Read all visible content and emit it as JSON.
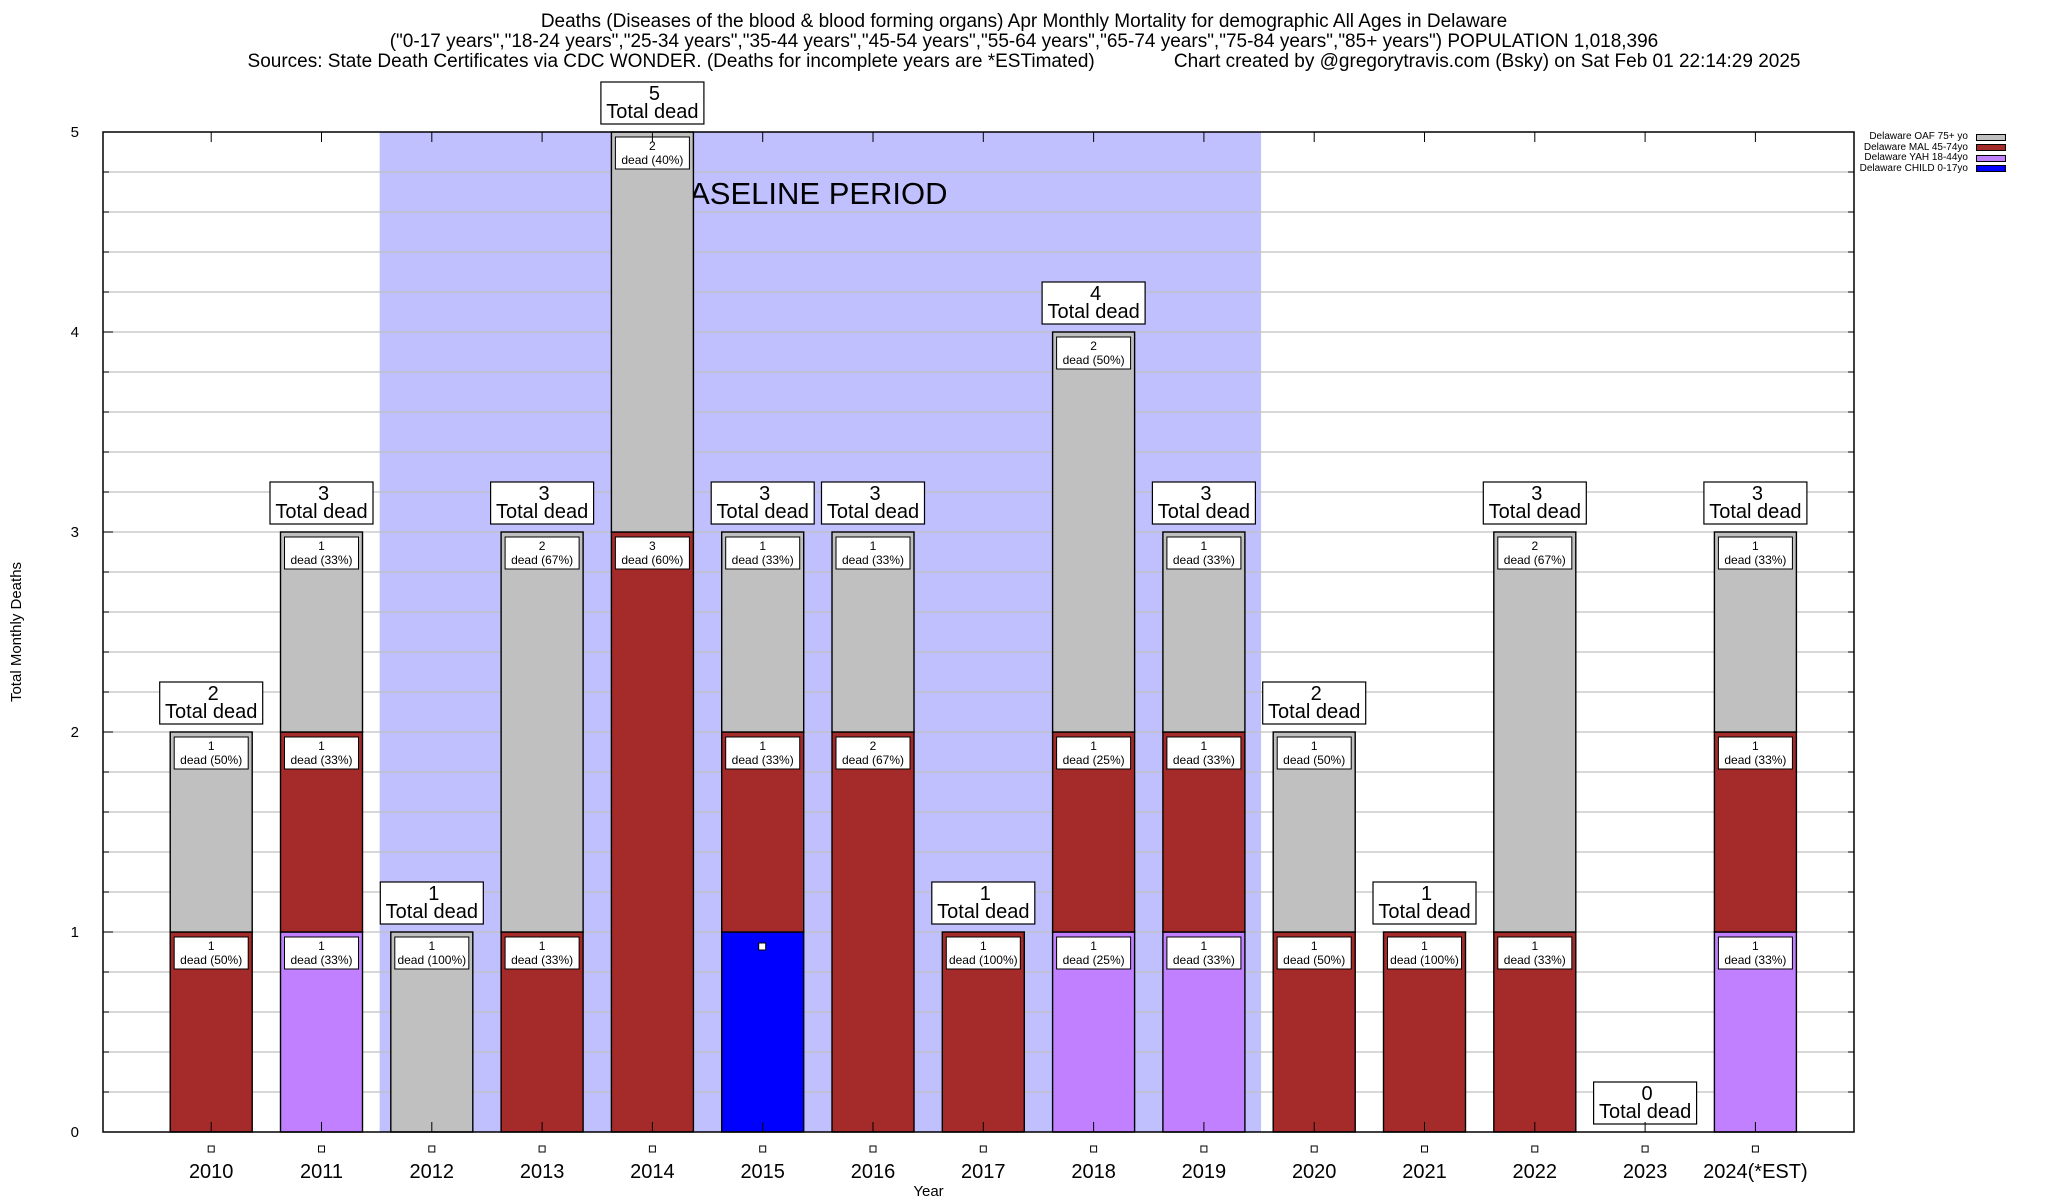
{
  "chart_data": {
    "type": "bar",
    "stacked": true,
    "title_lines": [
      "Deaths (Diseases of the blood & blood forming organs) Apr Monthly Mortality for demographic All Ages in Delaware",
      "(\"0-17 years\",\"18-24 years\",\"25-34 years\",\"35-44 years\",\"45-54 years\",\"55-64 years\",\"65-74 years\",\"75-84 years\",\"85+ years\") POPULATION 1,018,396",
      "Sources: State Death Certificates via CDC WONDER. (Deaths for incomplete years are *ESTimated)               Chart created by @gregorytravis.com (Bsky) on Sat Feb 01 22:14:29 2025"
    ],
    "xlabel": "Year",
    "ylabel": "Total Monthly Deaths",
    "ylim": [
      0,
      5
    ],
    "yticks": [
      0,
      1,
      2,
      3,
      4,
      5
    ],
    "y_minor_step": 0.2,
    "grid": true,
    "legend_position": "top-right",
    "categories": [
      "2010",
      "2011",
      "2012",
      "2013",
      "2014",
      "2015",
      "2016",
      "2017",
      "2018",
      "2019",
      "2020",
      "2021",
      "2022",
      "2023",
      "2024(*EST)"
    ],
    "series": [
      {
        "name": "Delaware CHILD 0-17yo",
        "color": "#0000ff",
        "values": [
          0,
          0,
          0,
          0,
          0,
          1,
          0,
          0,
          0,
          0,
          0,
          0,
          0,
          0,
          0
        ]
      },
      {
        "name": "Delaware YAH 18-44yo",
        "color": "#c080ff",
        "values": [
          0,
          1,
          0,
          0,
          0,
          0,
          0,
          0,
          1,
          1,
          0,
          0,
          0,
          0,
          1
        ]
      },
      {
        "name": "Delaware MAL 45-74yo",
        "color": "#a52a2a",
        "values": [
          1,
          1,
          0,
          1,
          3,
          1,
          2,
          1,
          1,
          1,
          1,
          1,
          1,
          0,
          1
        ]
      },
      {
        "name": "Delaware OAF 75+ yo",
        "color": "#c0c0c0",
        "values": [
          1,
          1,
          1,
          2,
          2,
          1,
          1,
          0,
          2,
          1,
          1,
          0,
          2,
          0,
          1
        ]
      }
    ],
    "legend_order": [
      "Delaware OAF 75+ yo",
      "Delaware MAL 45-74yo",
      "Delaware YAH 18-44yo",
      "Delaware CHILD 0-17yo"
    ],
    "totals": [
      2,
      3,
      1,
      3,
      5,
      3,
      3,
      1,
      4,
      3,
      2,
      1,
      3,
      0,
      3
    ],
    "total_label_suffix": "Total dead",
    "segment_label_word": "dead",
    "segment_labels": [
      [
        null,
        null,
        "1|dead (50%)",
        "1|dead (50%)"
      ],
      [
        null,
        "1|dead (33%)",
        "1|dead (33%)",
        "1|dead (33%)"
      ],
      [
        null,
        null,
        null,
        "1|dead (100%)"
      ],
      [
        null,
        null,
        "1|dead (33%)",
        "2|dead (67%)"
      ],
      [
        null,
        null,
        "3|dead (60%)",
        "2|dead (40%)"
      ],
      [
        null,
        null,
        "1|dead (33%)",
        "1|dead (33%)"
      ],
      [
        null,
        null,
        "2|dead (67%)",
        "1|dead (33%)"
      ],
      [
        null,
        null,
        "1|dead (100%)",
        null
      ],
      [
        null,
        "1|dead (25%)",
        "1|dead (25%)",
        "2|dead (50%)"
      ],
      [
        null,
        "1|dead (33%)",
        "1|dead (33%)",
        "1|dead (33%)"
      ],
      [
        null,
        null,
        "1|dead (50%)",
        "1|dead (50%)"
      ],
      [
        null,
        null,
        "1|dead (100%)",
        null
      ],
      [
        null,
        null,
        "1|dead (33%)",
        "2|dead (67%)"
      ],
      [
        null,
        null,
        null,
        null
      ],
      [
        null,
        "1|dead (33%)",
        "1|dead (33%)",
        "1|dead (33%)"
      ]
    ],
    "annotations": [
      {
        "text": "BASELINE PERIOD",
        "span_categories": [
          "2012",
          "2019"
        ],
        "band_color": "#c0c0ff"
      }
    ]
  }
}
